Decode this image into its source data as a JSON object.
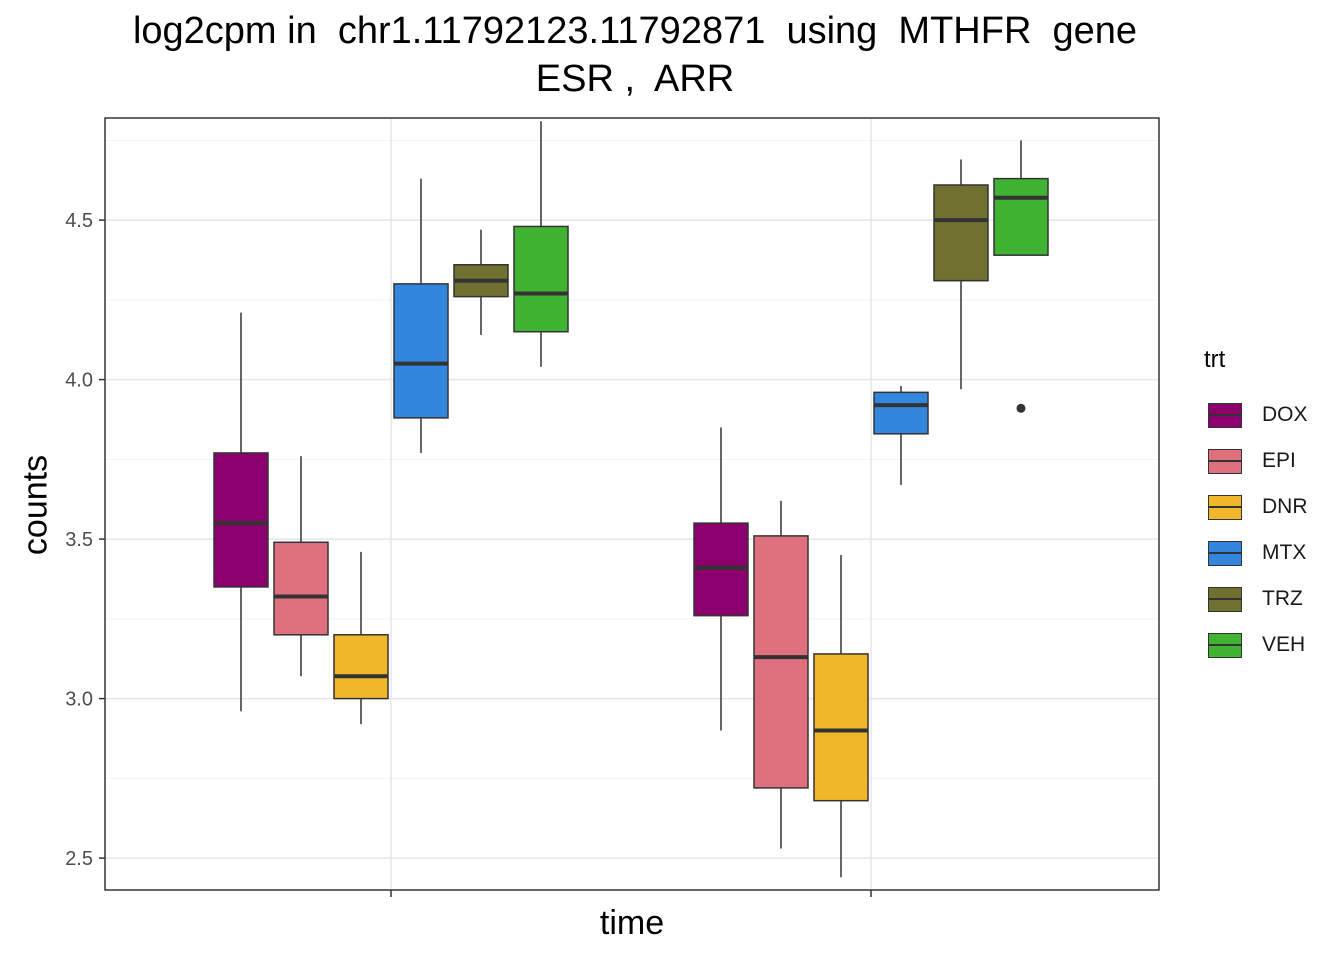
{
  "chart_data": {
    "type": "boxplot",
    "title": "log2cpm in  chr1.11792123.11792871  using  MTHFR  gene",
    "subtitle": "ESR ,  ARR",
    "xlabel": "time",
    "ylabel": "counts",
    "ylim": [
      2.4,
      4.82
    ],
    "yticks": [
      "2.5",
      "3.0",
      "3.5",
      "4.0",
      "4.5"
    ],
    "grid": "on",
    "legend": {
      "title": "trt",
      "position": "right",
      "items": [
        {
          "label": "DOX",
          "color": "#8B006D"
        },
        {
          "label": "EPI",
          "color": "#DF707E"
        },
        {
          "label": "DNR",
          "color": "#F1B72B"
        },
        {
          "label": "MTX",
          "color": "#3386DD"
        },
        {
          "label": "TRZ",
          "color": "#707031"
        },
        {
          "label": "VEH",
          "color": "#41B333"
        }
      ]
    },
    "groups": [
      "",
      ""
    ],
    "series": [
      {
        "trt": "DOX",
        "group": 0,
        "min": 2.96,
        "q1": 3.35,
        "median": 3.55,
        "q3": 3.77,
        "max": 4.21,
        "outliers": []
      },
      {
        "trt": "EPI",
        "group": 0,
        "min": 3.07,
        "q1": 3.2,
        "median": 3.32,
        "q3": 3.49,
        "max": 3.76,
        "outliers": []
      },
      {
        "trt": "DNR",
        "group": 0,
        "min": 2.92,
        "q1": 3.0,
        "median": 3.07,
        "q3": 3.2,
        "max": 3.46,
        "outliers": []
      },
      {
        "trt": "MTX",
        "group": 0,
        "min": 3.77,
        "q1": 3.88,
        "median": 4.05,
        "q3": 4.3,
        "max": 4.63,
        "outliers": []
      },
      {
        "trt": "TRZ",
        "group": 0,
        "min": 4.14,
        "q1": 4.26,
        "median": 4.31,
        "q3": 4.36,
        "max": 4.47,
        "outliers": []
      },
      {
        "trt": "VEH",
        "group": 0,
        "min": 4.04,
        "q1": 4.15,
        "median": 4.27,
        "q3": 4.48,
        "max": 4.81,
        "outliers": []
      },
      {
        "trt": "DOX",
        "group": 1,
        "min": 2.9,
        "q1": 3.26,
        "median": 3.41,
        "q3": 3.55,
        "max": 3.85,
        "outliers": []
      },
      {
        "trt": "EPI",
        "group": 1,
        "min": 2.53,
        "q1": 2.72,
        "median": 3.13,
        "q3": 3.51,
        "max": 3.62,
        "outliers": []
      },
      {
        "trt": "DNR",
        "group": 1,
        "min": 2.44,
        "q1": 2.68,
        "median": 2.9,
        "q3": 3.14,
        "max": 3.45,
        "outliers": []
      },
      {
        "trt": "MTX",
        "group": 1,
        "min": 3.67,
        "q1": 3.83,
        "median": 3.92,
        "q3": 3.96,
        "max": 3.98,
        "outliers": []
      },
      {
        "trt": "TRZ",
        "group": 1,
        "min": 3.97,
        "q1": 4.31,
        "median": 4.5,
        "q3": 4.61,
        "max": 4.69,
        "outliers": []
      },
      {
        "trt": "VEH",
        "group": 1,
        "min": 4.39,
        "q1": 4.39,
        "median": 4.57,
        "q3": 4.63,
        "max": 4.75,
        "outliers": [
          3.91
        ]
      }
    ]
  }
}
